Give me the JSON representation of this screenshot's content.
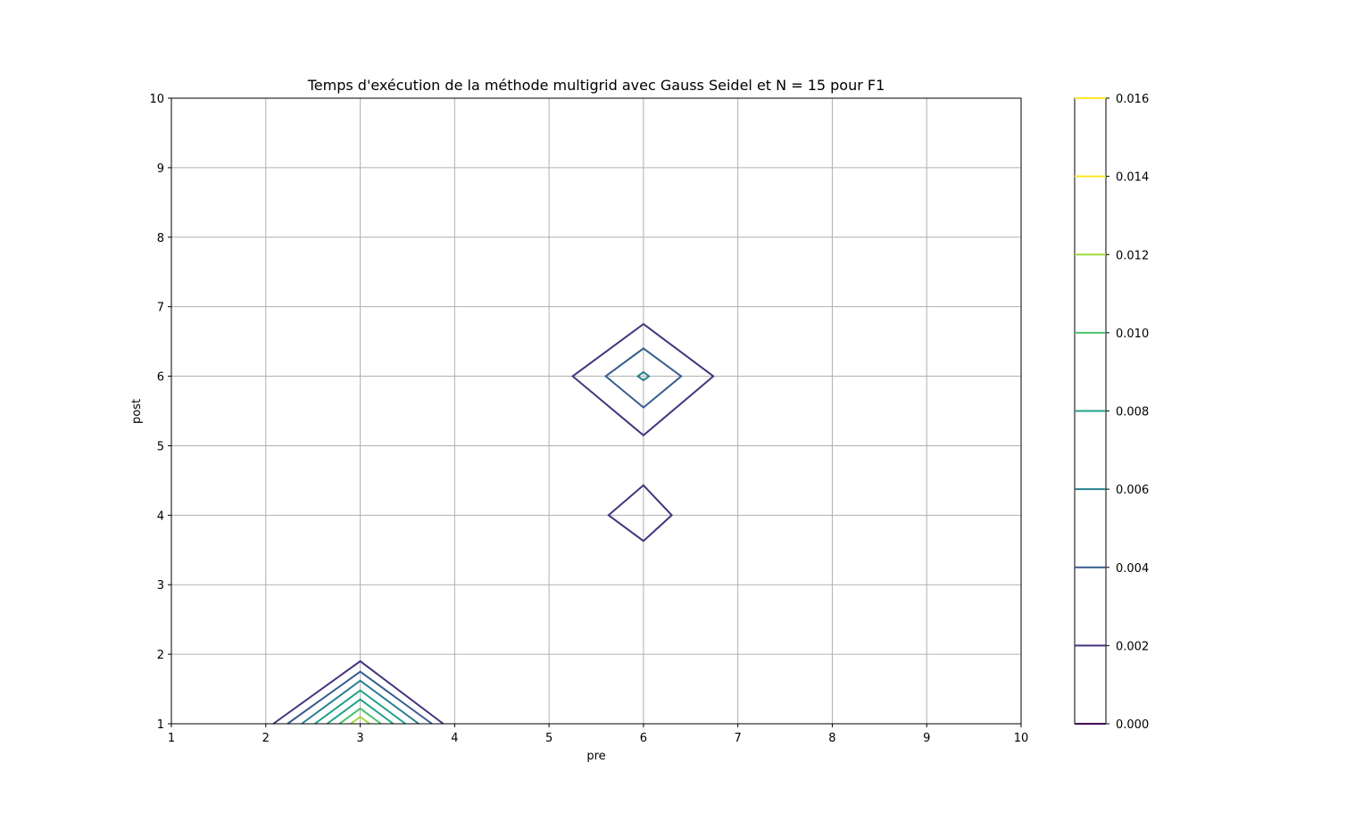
{
  "chart_data": {
    "type": "contour",
    "title": "Temps d'exécution de la méthode multigrid avec Gauss Seidel et N = 15 pour F1",
    "xlabel": "pre",
    "ylabel": "post",
    "xlim": [
      1,
      10
    ],
    "ylim": [
      1,
      10
    ],
    "x_ticks": [
      "1",
      "2",
      "3",
      "4",
      "5",
      "6",
      "7",
      "8",
      "9",
      "10"
    ],
    "y_ticks": [
      "1",
      "2",
      "3",
      "4",
      "5",
      "6",
      "7",
      "8",
      "9",
      "10"
    ],
    "grid": true,
    "colorbar": {
      "position": "right",
      "ticks": [
        "0.000",
        "0.002",
        "0.004",
        "0.006",
        "0.008",
        "0.010",
        "0.012",
        "0.014",
        "0.016"
      ],
      "levels": [
        0.0,
        0.002,
        0.004,
        0.006,
        0.008,
        0.01,
        0.012,
        0.014,
        0.016
      ],
      "colors": [
        "#440154",
        "#46327e",
        "#365c8d",
        "#277f8e",
        "#1fa187",
        "#4ac16d",
        "#a0da39",
        "#fde725",
        "#fde725"
      ]
    },
    "contours": [
      {
        "level": 0.002,
        "color": "#46327e",
        "path": [
          [
            2.08,
            1
          ],
          [
            3,
            1.9
          ],
          [
            3.88,
            1
          ]
        ]
      },
      {
        "level": 0.004,
        "color": "#365c8d",
        "path": [
          [
            2.23,
            1
          ],
          [
            3,
            1.75
          ],
          [
            3.76,
            1
          ]
        ]
      },
      {
        "level": 0.006,
        "color": "#277f8e",
        "path": [
          [
            2.38,
            1
          ],
          [
            3,
            1.62
          ],
          [
            3.62,
            1
          ]
        ]
      },
      {
        "level": 0.008,
        "color": "#1fa187",
        "path": [
          [
            2.52,
            1
          ],
          [
            3,
            1.48
          ],
          [
            3.48,
            1
          ]
        ]
      },
      {
        "level": 0.01,
        "color": "#1fa187",
        "path": [
          [
            2.65,
            1
          ],
          [
            3,
            1.35
          ],
          [
            3.35,
            1
          ]
        ]
      },
      {
        "level": 0.012,
        "color": "#4ac16d",
        "path": [
          [
            2.78,
            1
          ],
          [
            3,
            1.22
          ],
          [
            3.22,
            1
          ]
        ]
      },
      {
        "level": 0.014,
        "color": "#a0da39",
        "path": [
          [
            2.9,
            1
          ],
          [
            3,
            1.1
          ],
          [
            3.1,
            1
          ]
        ]
      },
      {
        "level": 0.002,
        "color": "#46327e",
        "closed": true,
        "path": [
          [
            6,
            6.75
          ],
          [
            6.74,
            6
          ],
          [
            6,
            5.15
          ],
          [
            5.25,
            6
          ]
        ]
      },
      {
        "level": 0.004,
        "color": "#365c8d",
        "closed": true,
        "path": [
          [
            6,
            6.4
          ],
          [
            6.4,
            6
          ],
          [
            6,
            5.55
          ],
          [
            5.6,
            6
          ]
        ]
      },
      {
        "level": 0.006,
        "color": "#277f8e",
        "closed": true,
        "path": [
          [
            6,
            6.06
          ],
          [
            6.06,
            6
          ],
          [
            6,
            5.94
          ],
          [
            5.94,
            6
          ]
        ]
      },
      {
        "level": 0.002,
        "color": "#46327e",
        "closed": true,
        "path": [
          [
            6,
            4.43
          ],
          [
            6.3,
            4
          ],
          [
            6,
            3.63
          ],
          [
            5.63,
            4
          ]
        ]
      }
    ]
  }
}
